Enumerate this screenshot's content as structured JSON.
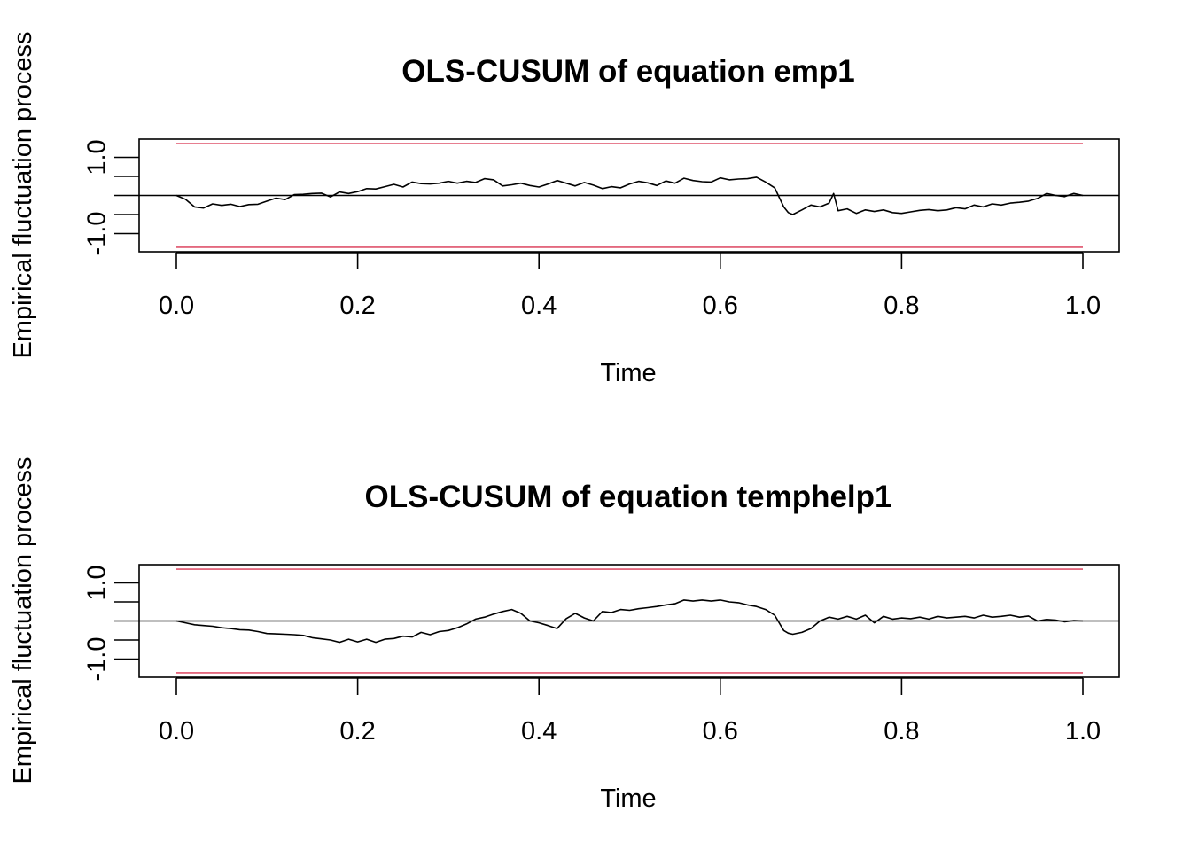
{
  "chart_data": [
    {
      "type": "line",
      "title": "OLS-CUSUM of equation emp1",
      "xlabel": "Time",
      "ylabel": "Empirical fluctuation process",
      "xlim": [
        0,
        1
      ],
      "ylim": [
        -1.5,
        1.5
      ],
      "xticks": [
        "0.0",
        "0.2",
        "0.4",
        "0.6",
        "0.8",
        "1.0"
      ],
      "yticks": [
        -1.0,
        -0.5,
        0,
        0.5,
        1.0
      ],
      "yticklabels": [
        "-1.0",
        "",
        "",
        "",
        "1.0"
      ],
      "grid": false,
      "boundary": {
        "upper": 1.36,
        "lower": -1.36,
        "color": "#DF536B"
      },
      "reference_line": 0,
      "series": [
        {
          "values": [
            [
              0.0,
              0.0
            ],
            [
              0.01,
              -0.1
            ],
            [
              0.02,
              -0.3
            ],
            [
              0.03,
              -0.33
            ],
            [
              0.04,
              -0.22
            ],
            [
              0.05,
              -0.26
            ],
            [
              0.06,
              -0.23
            ],
            [
              0.07,
              -0.29
            ],
            [
              0.08,
              -0.24
            ],
            [
              0.09,
              -0.23
            ],
            [
              0.1,
              -0.15
            ],
            [
              0.11,
              -0.07
            ],
            [
              0.12,
              -0.11
            ],
            [
              0.13,
              0.02
            ],
            [
              0.14,
              0.03
            ],
            [
              0.15,
              0.05
            ],
            [
              0.16,
              0.06
            ],
            [
              0.17,
              -0.04
            ],
            [
              0.18,
              0.09
            ],
            [
              0.19,
              0.05
            ],
            [
              0.2,
              0.1
            ],
            [
              0.21,
              0.18
            ],
            [
              0.22,
              0.17
            ],
            [
              0.23,
              0.23
            ],
            [
              0.24,
              0.29
            ],
            [
              0.25,
              0.22
            ],
            [
              0.26,
              0.35
            ],
            [
              0.27,
              0.31
            ],
            [
              0.28,
              0.3
            ],
            [
              0.29,
              0.32
            ],
            [
              0.3,
              0.37
            ],
            [
              0.31,
              0.32
            ],
            [
              0.32,
              0.37
            ],
            [
              0.33,
              0.34
            ],
            [
              0.34,
              0.44
            ],
            [
              0.35,
              0.41
            ],
            [
              0.36,
              0.25
            ],
            [
              0.37,
              0.28
            ],
            [
              0.38,
              0.32
            ],
            [
              0.39,
              0.26
            ],
            [
              0.4,
              0.22
            ],
            [
              0.41,
              0.3
            ],
            [
              0.42,
              0.39
            ],
            [
              0.43,
              0.32
            ],
            [
              0.44,
              0.25
            ],
            [
              0.45,
              0.34
            ],
            [
              0.46,
              0.27
            ],
            [
              0.47,
              0.18
            ],
            [
              0.48,
              0.23
            ],
            [
              0.49,
              0.2
            ],
            [
              0.5,
              0.3
            ],
            [
              0.51,
              0.37
            ],
            [
              0.52,
              0.33
            ],
            [
              0.53,
              0.26
            ],
            [
              0.54,
              0.38
            ],
            [
              0.55,
              0.32
            ],
            [
              0.56,
              0.45
            ],
            [
              0.57,
              0.39
            ],
            [
              0.58,
              0.36
            ],
            [
              0.59,
              0.35
            ],
            [
              0.6,
              0.46
            ],
            [
              0.61,
              0.41
            ],
            [
              0.62,
              0.43
            ],
            [
              0.63,
              0.44
            ],
            [
              0.64,
              0.48
            ],
            [
              0.65,
              0.35
            ],
            [
              0.66,
              0.2
            ],
            [
              0.67,
              -0.3
            ],
            [
              0.675,
              -0.45
            ],
            [
              0.68,
              -0.5
            ],
            [
              0.69,
              -0.38
            ],
            [
              0.7,
              -0.25
            ],
            [
              0.71,
              -0.3
            ],
            [
              0.72,
              -0.2
            ],
            [
              0.725,
              0.05
            ],
            [
              0.73,
              -0.4
            ],
            [
              0.74,
              -0.35
            ],
            [
              0.75,
              -0.47
            ],
            [
              0.76,
              -0.38
            ],
            [
              0.77,
              -0.42
            ],
            [
              0.78,
              -0.38
            ],
            [
              0.79,
              -0.45
            ],
            [
              0.8,
              -0.47
            ],
            [
              0.81,
              -0.43
            ],
            [
              0.82,
              -0.39
            ],
            [
              0.83,
              -0.37
            ],
            [
              0.84,
              -0.4
            ],
            [
              0.85,
              -0.38
            ],
            [
              0.86,
              -0.32
            ],
            [
              0.87,
              -0.35
            ],
            [
              0.88,
              -0.25
            ],
            [
              0.89,
              -0.3
            ],
            [
              0.9,
              -0.22
            ],
            [
              0.91,
              -0.25
            ],
            [
              0.92,
              -0.2
            ],
            [
              0.93,
              -0.18
            ],
            [
              0.94,
              -0.15
            ],
            [
              0.95,
              -0.08
            ],
            [
              0.96,
              0.05
            ],
            [
              0.97,
              0.0
            ],
            [
              0.98,
              -0.03
            ],
            [
              0.99,
              0.05
            ],
            [
              1.0,
              0.0
            ]
          ]
        }
      ]
    },
    {
      "type": "line",
      "title": "OLS-CUSUM of equation temphelp1",
      "xlabel": "Time",
      "ylabel": "Empirical fluctuation process",
      "xlim": [
        0,
        1
      ],
      "ylim": [
        -1.5,
        1.5
      ],
      "xticks": [
        "0.0",
        "0.2",
        "0.4",
        "0.6",
        "0.8",
        "1.0"
      ],
      "yticks": [
        -1.0,
        -0.5,
        0,
        0.5,
        1.0
      ],
      "yticklabels": [
        "-1.0",
        "",
        "",
        "",
        "1.0"
      ],
      "grid": false,
      "boundary": {
        "upper": 1.36,
        "lower": -1.36,
        "color": "#DF536B"
      },
      "reference_line": 0,
      "series": [
        {
          "values": [
            [
              0.0,
              0.0
            ],
            [
              0.01,
              -0.05
            ],
            [
              0.02,
              -0.1
            ],
            [
              0.03,
              -0.12
            ],
            [
              0.04,
              -0.14
            ],
            [
              0.05,
              -0.18
            ],
            [
              0.06,
              -0.2
            ],
            [
              0.07,
              -0.23
            ],
            [
              0.08,
              -0.24
            ],
            [
              0.09,
              -0.28
            ],
            [
              0.1,
              -0.33
            ],
            [
              0.11,
              -0.34
            ],
            [
              0.12,
              -0.35
            ],
            [
              0.13,
              -0.36
            ],
            [
              0.14,
              -0.38
            ],
            [
              0.15,
              -0.44
            ],
            [
              0.16,
              -0.47
            ],
            [
              0.17,
              -0.5
            ],
            [
              0.18,
              -0.56
            ],
            [
              0.19,
              -0.48
            ],
            [
              0.2,
              -0.55
            ],
            [
              0.21,
              -0.48
            ],
            [
              0.22,
              -0.56
            ],
            [
              0.23,
              -0.48
            ],
            [
              0.24,
              -0.46
            ],
            [
              0.25,
              -0.4
            ],
            [
              0.26,
              -0.42
            ],
            [
              0.27,
              -0.3
            ],
            [
              0.28,
              -0.36
            ],
            [
              0.29,
              -0.28
            ],
            [
              0.3,
              -0.25
            ],
            [
              0.31,
              -0.18
            ],
            [
              0.32,
              -0.08
            ],
            [
              0.33,
              0.05
            ],
            [
              0.34,
              0.1
            ],
            [
              0.35,
              0.18
            ],
            [
              0.36,
              0.25
            ],
            [
              0.37,
              0.3
            ],
            [
              0.38,
              0.2
            ],
            [
              0.39,
              0.0
            ],
            [
              0.4,
              -0.05
            ],
            [
              0.41,
              -0.12
            ],
            [
              0.42,
              -0.2
            ],
            [
              0.43,
              0.06
            ],
            [
              0.44,
              0.2
            ],
            [
              0.45,
              0.08
            ],
            [
              0.46,
              0.0
            ],
            [
              0.47,
              0.25
            ],
            [
              0.48,
              0.22
            ],
            [
              0.49,
              0.3
            ],
            [
              0.5,
              0.28
            ],
            [
              0.51,
              0.32
            ],
            [
              0.52,
              0.35
            ],
            [
              0.53,
              0.38
            ],
            [
              0.54,
              0.42
            ],
            [
              0.55,
              0.45
            ],
            [
              0.56,
              0.55
            ],
            [
              0.57,
              0.52
            ],
            [
              0.58,
              0.55
            ],
            [
              0.59,
              0.52
            ],
            [
              0.6,
              0.55
            ],
            [
              0.61,
              0.5
            ],
            [
              0.62,
              0.48
            ],
            [
              0.63,
              0.42
            ],
            [
              0.64,
              0.38
            ],
            [
              0.65,
              0.3
            ],
            [
              0.66,
              0.15
            ],
            [
              0.67,
              -0.25
            ],
            [
              0.675,
              -0.32
            ],
            [
              0.68,
              -0.35
            ],
            [
              0.69,
              -0.3
            ],
            [
              0.7,
              -0.2
            ],
            [
              0.71,
              0.0
            ],
            [
              0.72,
              0.1
            ],
            [
              0.73,
              0.05
            ],
            [
              0.74,
              0.12
            ],
            [
              0.75,
              0.05
            ],
            [
              0.76,
              0.15
            ],
            [
              0.77,
              -0.05
            ],
            [
              0.78,
              0.12
            ],
            [
              0.79,
              0.05
            ],
            [
              0.8,
              0.08
            ],
            [
              0.81,
              0.06
            ],
            [
              0.82,
              0.1
            ],
            [
              0.83,
              0.05
            ],
            [
              0.84,
              0.12
            ],
            [
              0.85,
              0.08
            ],
            [
              0.86,
              0.1
            ],
            [
              0.87,
              0.12
            ],
            [
              0.88,
              0.08
            ],
            [
              0.89,
              0.15
            ],
            [
              0.9,
              0.1
            ],
            [
              0.91,
              0.12
            ],
            [
              0.92,
              0.15
            ],
            [
              0.93,
              0.1
            ],
            [
              0.94,
              0.13
            ],
            [
              0.95,
              0.0
            ],
            [
              0.96,
              0.04
            ],
            [
              0.97,
              0.02
            ],
            [
              0.98,
              -0.02
            ],
            [
              0.99,
              0.01
            ],
            [
              1.0,
              0.0
            ]
          ]
        }
      ]
    }
  ]
}
